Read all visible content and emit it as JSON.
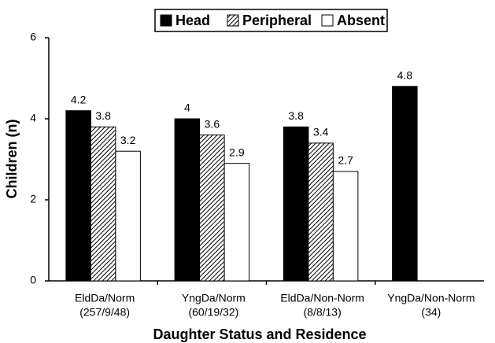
{
  "chart_data": {
    "type": "bar",
    "categories": [
      [
        "EldDa/Norm",
        "(257/9/48)"
      ],
      [
        "YngDa/Norm",
        "(60/19/32)"
      ],
      [
        "EldDa/Non-Norm",
        "(8/8/13)"
      ],
      [
        "YngDa/Non-Norm",
        "(34)"
      ]
    ],
    "series": [
      {
        "name": "Head",
        "color": "#000000",
        "values": [
          4.2,
          4,
          3.8,
          4.8
        ]
      },
      {
        "name": "Peripheral",
        "color": "#000000",
        "pattern": "hatch",
        "values": [
          3.8,
          3.6,
          3.4,
          null
        ]
      },
      {
        "name": "Absent",
        "color": "#ffffff",
        "values": [
          3.2,
          2.9,
          2.7,
          null
        ]
      }
    ],
    "ylim": [
      0,
      6
    ],
    "yticks": [
      0,
      2,
      4,
      6
    ],
    "ylabel": "Children (n)",
    "xlabel": "Daughter Status and Residence",
    "legend": "top",
    "grid": false
  }
}
